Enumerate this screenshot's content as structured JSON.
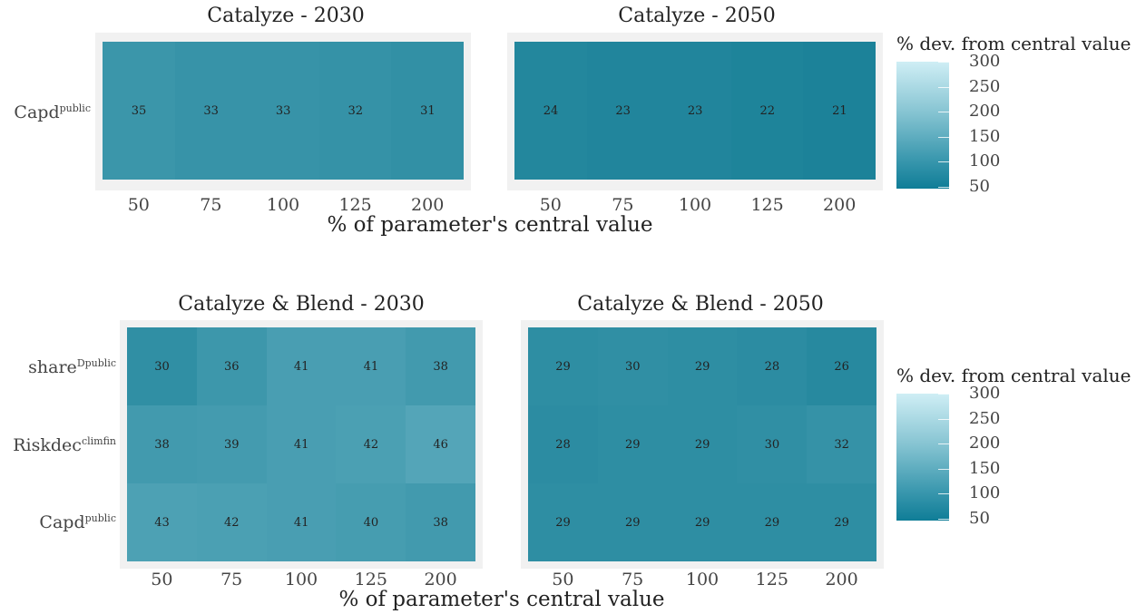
{
  "colors": {
    "panel_bg": "#f1f1f1",
    "scale_low": "#0f7d97",
    "scale_high": "#d4f1f8"
  },
  "chart_data": [
    {
      "type": "heatmap",
      "title": "Catalyze - 2030",
      "x_categories": [
        "50",
        "75",
        "100",
        "125",
        "200"
      ],
      "rows": [
        "Capd^public"
      ],
      "values": [
        [
          35,
          33,
          33,
          32,
          31
        ]
      ]
    },
    {
      "type": "heatmap",
      "title": "Catalyze - 2050",
      "x_categories": [
        "50",
        "75",
        "100",
        "125",
        "200"
      ],
      "rows": [
        "Capd^public"
      ],
      "values": [
        [
          24,
          23,
          23,
          22,
          21
        ]
      ]
    },
    {
      "type": "heatmap",
      "title": "Catalyze & Blend - 2030",
      "x_categories": [
        "50",
        "75",
        "100",
        "125",
        "200"
      ],
      "rows": [
        "share^Dpublic",
        "Riskdec^climfin",
        "Capd^public"
      ],
      "values": [
        [
          30,
          36,
          41,
          41,
          38
        ],
        [
          38,
          39,
          41,
          42,
          46
        ],
        [
          43,
          42,
          41,
          40,
          38
        ]
      ]
    },
    {
      "type": "heatmap",
      "title": "Catalyze & Blend - 2050",
      "x_categories": [
        "50",
        "75",
        "100",
        "125",
        "200"
      ],
      "rows": [
        "share^Dpublic",
        "Riskdec^climfin",
        "Capd^public"
      ],
      "values": [
        [
          29,
          30,
          29,
          28,
          26
        ],
        [
          28,
          29,
          29,
          30,
          32
        ],
        [
          29,
          29,
          29,
          29,
          29
        ]
      ]
    }
  ],
  "axes": {
    "xlabel": "% of parameter's central value",
    "row_labels": {
      "capd": {
        "base": "Capd",
        "sup": "public"
      },
      "share": {
        "base": "share",
        "sup": "Dpublic"
      },
      "riskdec": {
        "base": "Riskdec",
        "sup": "climfin"
      }
    }
  },
  "legend": {
    "title": "% dev. from central value",
    "ticks": [
      "300",
      "250",
      "200",
      "150",
      "100",
      "50"
    ]
  }
}
